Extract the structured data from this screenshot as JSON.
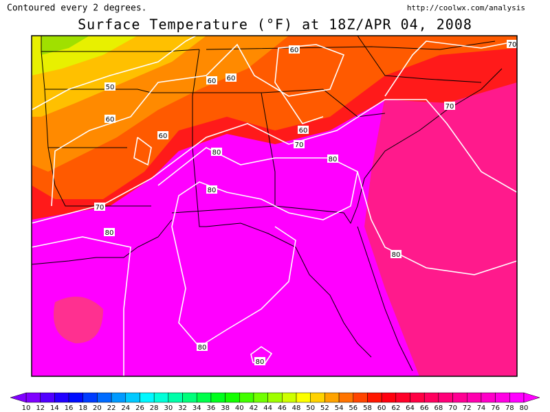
{
  "header": {
    "note": "Contoured every 2 degrees.",
    "source": "http://coolwx.com/analysis",
    "title": "Surface Temperature (°F) at 18Z/APR 04, 2008"
  },
  "map": {
    "contour_labels": [
      "50",
      "60",
      "60",
      "60",
      "60",
      "60",
      "60",
      "70",
      "70",
      "70",
      "70",
      "80",
      "80",
      "80",
      "80",
      "80",
      "80",
      "80"
    ]
  },
  "colorbar": {
    "labels": [
      "10",
      "12",
      "14",
      "16",
      "18",
      "20",
      "22",
      "24",
      "26",
      "28",
      "30",
      "32",
      "34",
      "36",
      "38",
      "40",
      "42",
      "44",
      "46",
      "48",
      "50",
      "52",
      "54",
      "56",
      "58",
      "60",
      "62",
      "64",
      "66",
      "68",
      "70",
      "72",
      "74",
      "76",
      "78",
      "80"
    ]
  }
}
